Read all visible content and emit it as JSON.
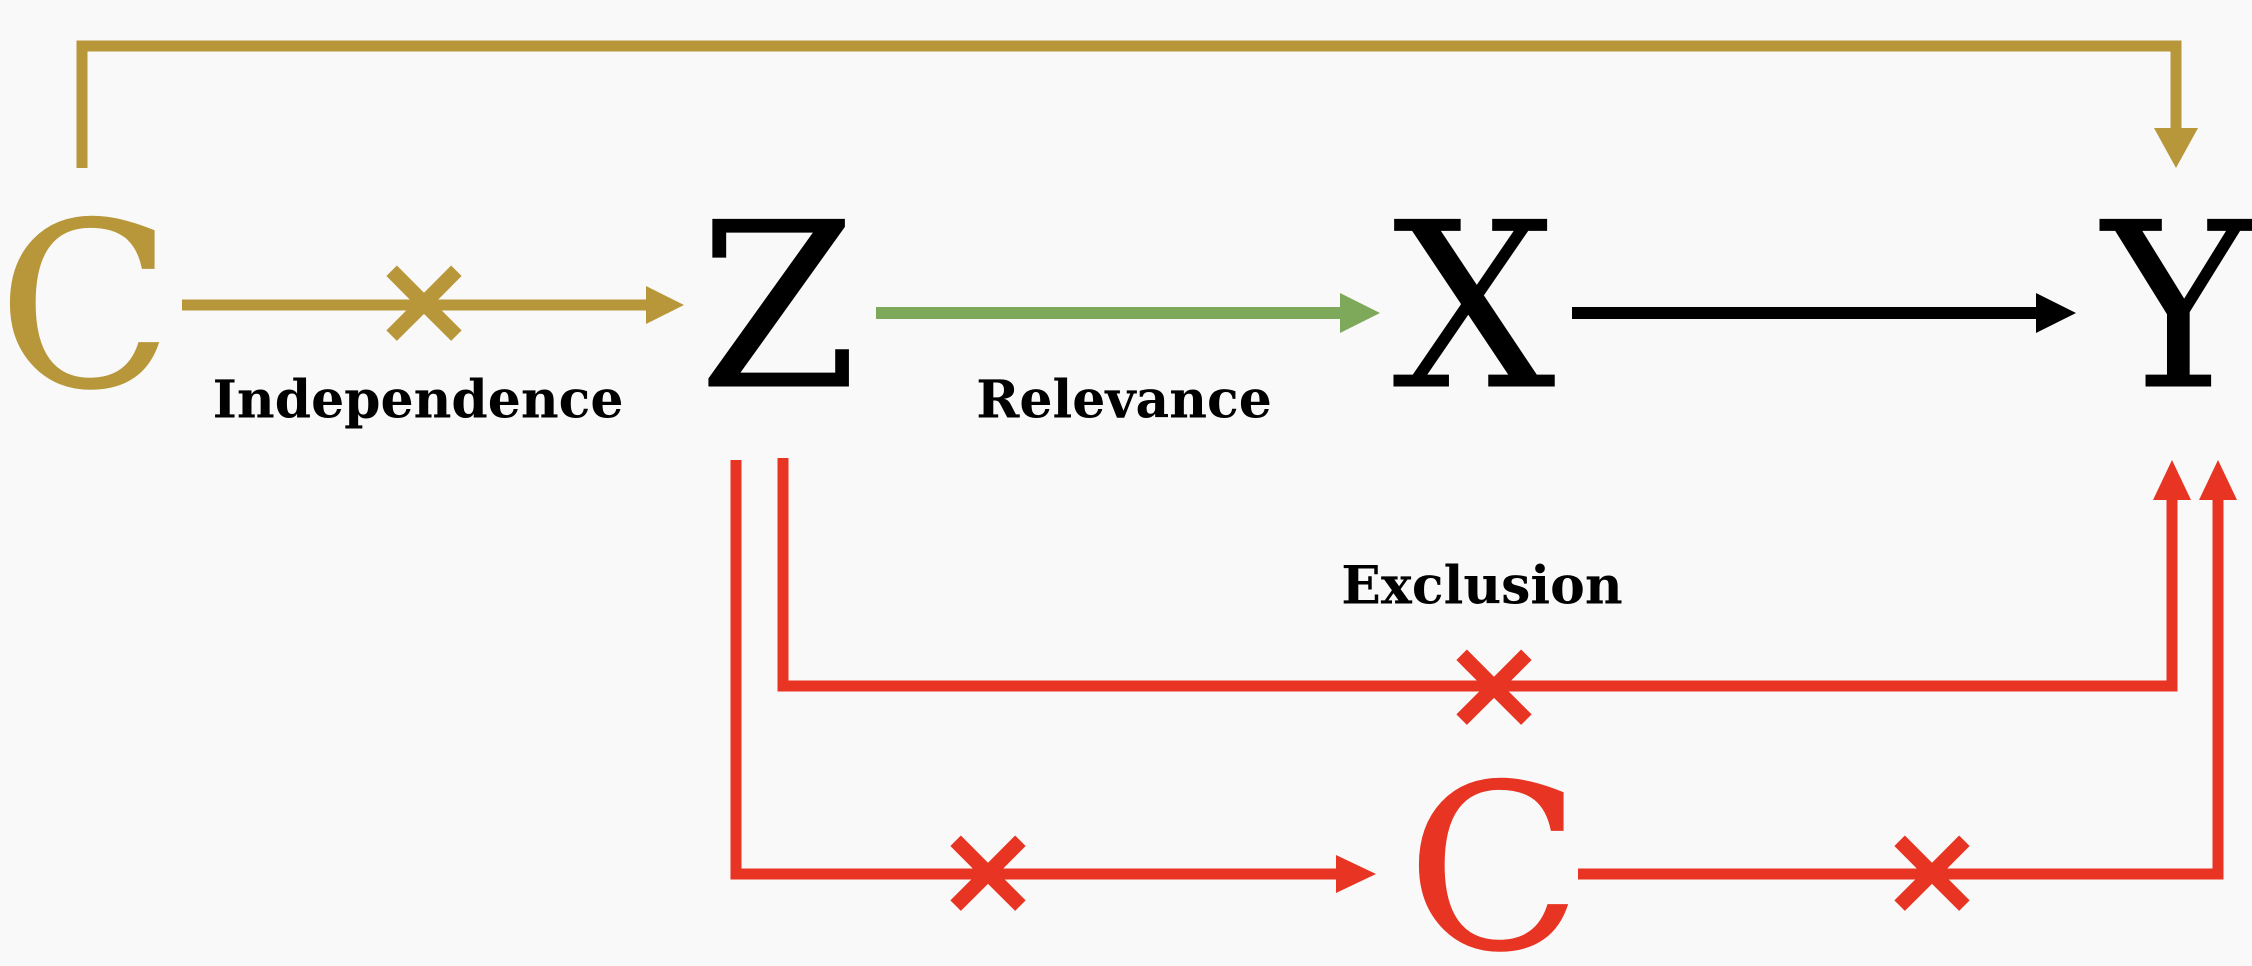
{
  "colors": {
    "confounder": "#b8963a",
    "relevance": "#7fa95a",
    "causal": "#000000",
    "exclusion": "#e83423",
    "background": "#f9f9f9"
  },
  "nodes": {
    "c_top": {
      "label": "C"
    },
    "z": {
      "label": "Z"
    },
    "x": {
      "label": "X"
    },
    "y": {
      "label": "Y"
    },
    "c_bottom": {
      "label": "C"
    }
  },
  "labels": {
    "independence": "Independence",
    "relevance": "Relevance",
    "exclusion": "Exclusion"
  },
  "cross_marks": {
    "independence": "×",
    "exclusion": "×",
    "z_to_c": "×",
    "c_to_y": "×"
  }
}
